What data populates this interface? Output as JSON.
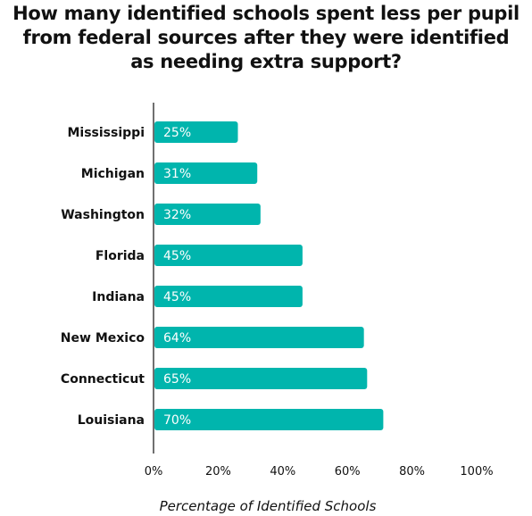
{
  "chart_data": {
    "type": "bar",
    "orientation": "horizontal",
    "title": "How many identified schools spent less per pupil from federal sources after they were identified as needing extra support?",
    "title_lines": [
      "How many identified schools spent less per pupil",
      "from federal sources after they were identified",
      "as needing extra support?"
    ],
    "categories": [
      "Mississippi",
      "Michigan",
      "Washington",
      "Florida",
      "Indiana",
      "New Mexico",
      "Connecticut",
      "Louisiana"
    ],
    "values": [
      25,
      31,
      32,
      45,
      45,
      64,
      65,
      70
    ],
    "data_labels": [
      "25%",
      "31%",
      "32%",
      "45%",
      "45%",
      "64%",
      "65%",
      "70%"
    ],
    "xlabel": "Percentage of Identified Schools",
    "ylabel": "",
    "xlim": [
      0,
      100
    ],
    "x_ticks": [
      0,
      20,
      40,
      60,
      80,
      100
    ],
    "x_tick_labels": [
      "0%",
      "20%",
      "40%",
      "60%",
      "80%",
      "100%"
    ],
    "grid": false,
    "colors": {
      "bar": "#00b5ad",
      "text": "#111111",
      "label": "#ffffff",
      "axis": "#111111"
    }
  }
}
